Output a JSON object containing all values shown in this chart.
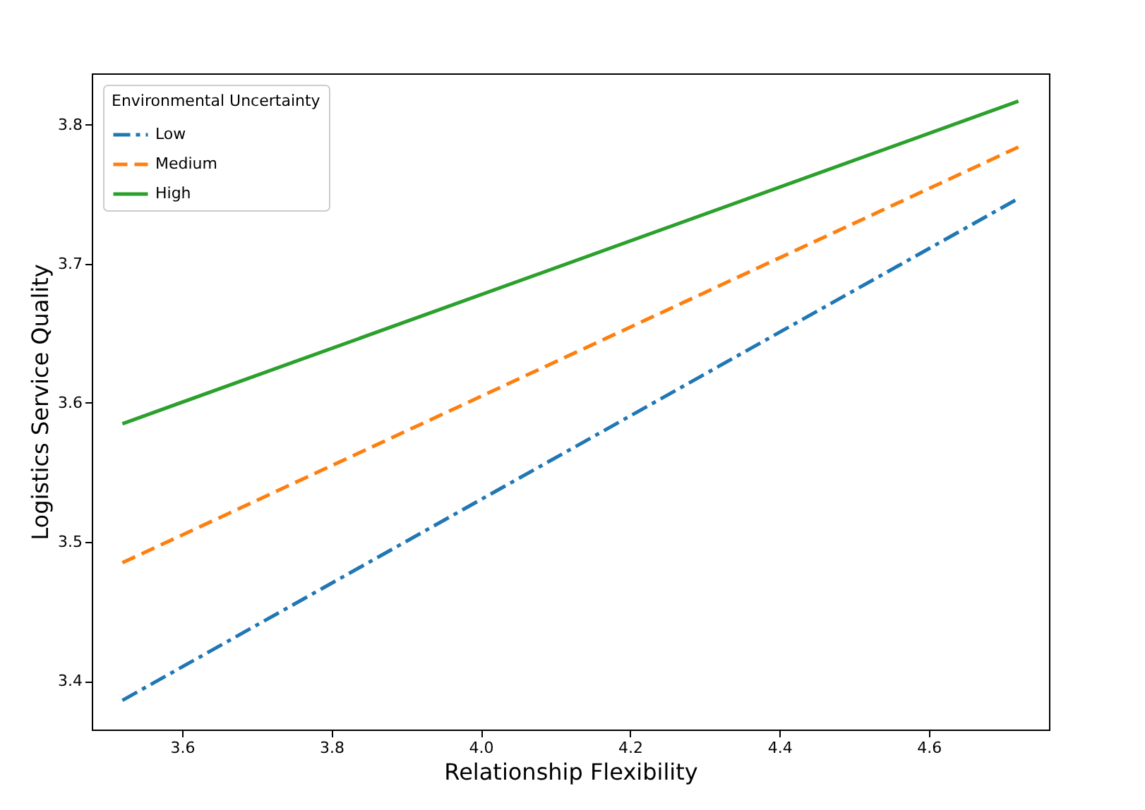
{
  "chart_data": {
    "type": "line",
    "xlabel": "Relationship Flexibility",
    "ylabel": "Logistics Service Quality",
    "legend_title": "Environmental Uncertainty",
    "legend": "top left",
    "grid": false,
    "marker": "none",
    "x": [
      3.52,
      4.72
    ],
    "xlim": [
      3.479,
      4.761
    ],
    "xticks": [
      3.6,
      3.8,
      {
        "value": 4.0,
        "label": "4.0"
      },
      4.2,
      4.4,
      4.6
    ],
    "ylim": [
      3.365,
      3.837
    ],
    "yticks": [
      3.4,
      3.5,
      3.6,
      3.7,
      3.8
    ],
    "series": [
      {
        "name": "Low",
        "color": "#1f77b4",
        "line_style": "dashdot",
        "values": [
          3.386,
          3.747
        ]
      },
      {
        "name": "Medium",
        "color": "#ff7f0e",
        "line_style": "dashed",
        "values": [
          3.485,
          3.784
        ]
      },
      {
        "name": "High",
        "color": "#2ca02c",
        "line_style": "solid",
        "values": [
          3.585,
          3.817
        ]
      }
    ]
  }
}
